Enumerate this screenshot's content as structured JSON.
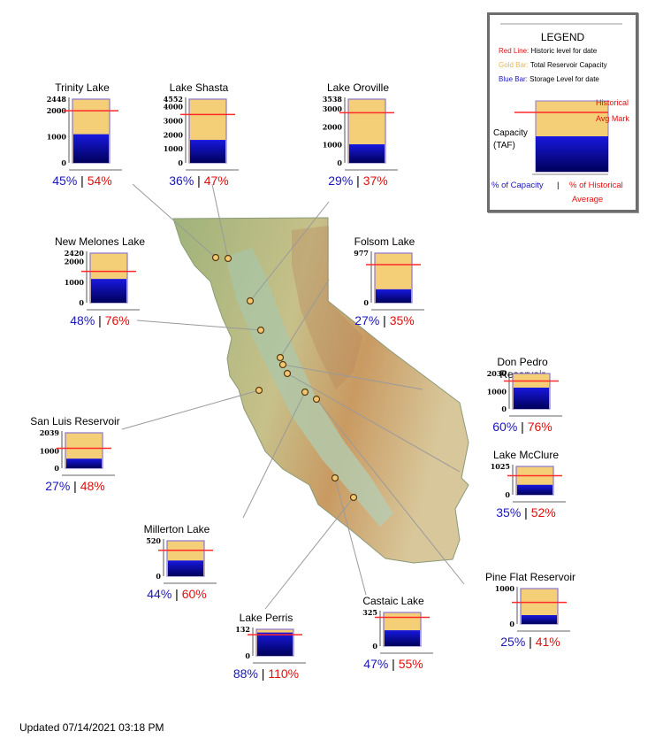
{
  "colors": {
    "capacity": "#f5cf78",
    "storage": "#0a0ac0",
    "historic": "#ff2a2a",
    "blue_text": "#1a17b8",
    "red_text": "#e01010"
  },
  "chart_data": {
    "type": "bar",
    "reservoirs": [
      {
        "name": "Trinity Lake",
        "capacity": 2448,
        "storage": 1100,
        "historic": 2000,
        "ticks": [
          "2448",
          "2000",
          "1000",
          "0"
        ],
        "pct_capacity": "45%",
        "pct_average": "54%"
      },
      {
        "name": "Lake Shasta",
        "capacity": 4552,
        "storage": 1640,
        "historic": 3450,
        "ticks": [
          "4552",
          "4000",
          "3000",
          "2000",
          "1000",
          "0"
        ],
        "pct_capacity": "36%",
        "pct_average": "47%"
      },
      {
        "name": "Lake Oroville",
        "capacity": 3538,
        "storage": 1030,
        "historic": 2780,
        "ticks": [
          "3538",
          "3000",
          "2000",
          "1000",
          "0"
        ],
        "pct_capacity": "29%",
        "pct_average": "37%"
      },
      {
        "name": "New Melones Lake",
        "capacity": 2420,
        "storage": 1160,
        "historic": 1530,
        "ticks": [
          "2420",
          "2000",
          "1000",
          "0"
        ],
        "pct_capacity": "48%",
        "pct_average": "76%"
      },
      {
        "name": "Folsom Lake",
        "capacity": 977,
        "storage": 264,
        "historic": 750,
        "ticks": [
          "977",
          "0"
        ],
        "pct_capacity": "27%",
        "pct_average": "35%"
      },
      {
        "name": "Don Pedro Reservoir",
        "capacity": 2030,
        "storage": 1220,
        "historic": 1600,
        "ticks": [
          "2030",
          "1000",
          "0"
        ],
        "pct_capacity": "60%",
        "pct_average": "76%"
      },
      {
        "name": "San Luis Reservoir",
        "capacity": 2039,
        "storage": 550,
        "historic": 1150,
        "ticks": [
          "2039",
          "1000",
          "0"
        ],
        "pct_capacity": "27%",
        "pct_average": "48%"
      },
      {
        "name": "Lake McClure",
        "capacity": 1025,
        "storage": 360,
        "historic": 690,
        "ticks": [
          "1025",
          "0"
        ],
        "pct_capacity": "35%",
        "pct_average": "52%"
      },
      {
        "name": "Millerton Lake",
        "capacity": 520,
        "storage": 230,
        "historic": 380,
        "ticks": [
          "520",
          "0"
        ],
        "pct_capacity": "44%",
        "pct_average": "60%"
      },
      {
        "name": "Pine Flat Reservoir",
        "capacity": 1000,
        "storage": 250,
        "historic": 610,
        "ticks": [
          "1000",
          "0"
        ],
        "pct_capacity": "25%",
        "pct_average": "41%"
      },
      {
        "name": "Lake Perris",
        "capacity": 132,
        "storage": 116,
        "historic": 105,
        "ticks": [
          "132",
          "0"
        ],
        "pct_capacity": "88%",
        "pct_average": "110%"
      },
      {
        "name": "Castaic Lake",
        "capacity": 325,
        "storage": 153,
        "historic": 278,
        "ticks": [
          "325",
          "0"
        ],
        "pct_capacity": "47%",
        "pct_average": "55%"
      }
    ]
  },
  "legend": {
    "title": "LEGEND",
    "red_key": "Red Line:",
    "red_desc": "Historic level for date",
    "gold_key": "Gold Bar:",
    "gold_desc": "Total Reservoir Capacity",
    "blue_key": "Blue Bar:",
    "blue_desc": "Storage Level for date",
    "historical_label": "Historical",
    "avg_mark_label": "Avg Mark",
    "capacity_label": "Capacity",
    "taf_label": "(TAF)",
    "pct_capacity_label": "% of Capacity",
    "divider": "|",
    "pct_hist_label": "% of Historical",
    "average_label": "Average"
  },
  "footer": {
    "updated": "Updated 07/14/2021 03:18 PM"
  }
}
